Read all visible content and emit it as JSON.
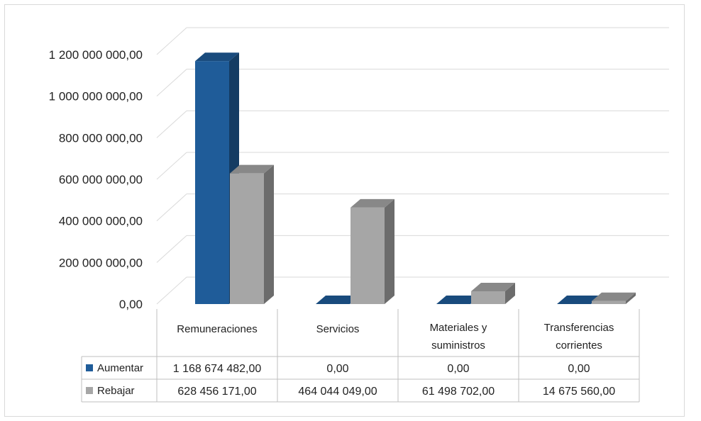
{
  "chart_data": {
    "type": "bar",
    "style": "3d-clustered-column-with-data-table",
    "categories": [
      [
        "Remuneraciones"
      ],
      [
        "Servicios"
      ],
      [
        "Materiales y",
        "suministros"
      ],
      [
        "Transferencias",
        "corrientes"
      ]
    ],
    "series": [
      {
        "name": "Aumentar",
        "color": "#1f5c99",
        "values": [
          1168674482.0,
          0.0,
          0.0,
          0.0
        ],
        "labels": [
          "1  168  674  482,00",
          "0,00",
          "0,00",
          "0,00"
        ]
      },
      {
        "name": "Rebajar",
        "color": "#a6a6a6",
        "values": [
          628456171.0,
          464044049.0,
          61498702.0,
          14675560.0
        ],
        "labels": [
          "628  456  171,00",
          "464  044  049,00",
          "61  498  702,00",
          "14  675  560,00"
        ]
      }
    ],
    "y_ticks": [
      {
        "value": 0,
        "label": "0,00"
      },
      {
        "value": 200000000,
        "label": "200  000  000,00"
      },
      {
        "value": 400000000,
        "label": "400  000  000,00"
      },
      {
        "value": 600000000,
        "label": "600  000  000,00"
      },
      {
        "value": 800000000,
        "label": "800  000  000,00"
      },
      {
        "value": 1000000000,
        "label": "1  000  000  000,00"
      },
      {
        "value": 1200000000,
        "label": "1  200  000  000,00"
      }
    ],
    "ylim": [
      0,
      1200000000
    ],
    "grid": true,
    "legend": "data-table"
  }
}
